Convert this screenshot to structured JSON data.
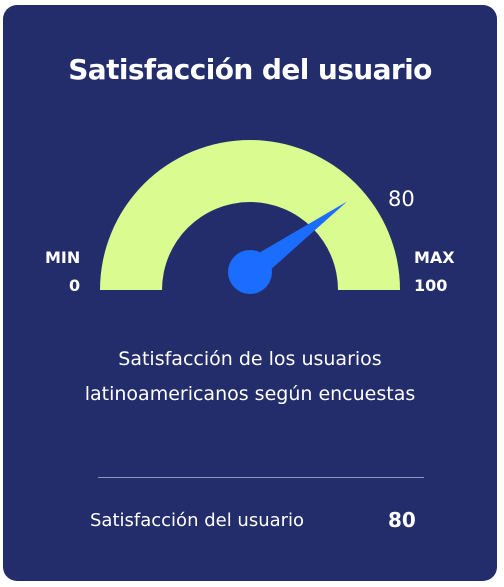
{
  "card": {
    "title": "Satisfacción del usuario",
    "description": "Satisfacción de los usuarios latinoamericanos según encuestas"
  },
  "gauge": {
    "value": 80,
    "value_label": "80",
    "min_text": "MIN",
    "min_value": "0",
    "max_text": "MAX",
    "max_value": "100",
    "colors": {
      "track": "#d9fb8f",
      "needle": "#1b6dff",
      "background": "#232d6b"
    }
  },
  "footer": {
    "label": "Satisfacción del usuario",
    "value": "80"
  }
}
